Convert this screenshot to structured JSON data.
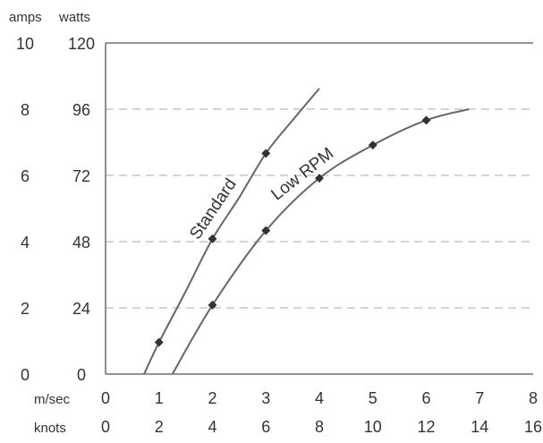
{
  "chart_data": {
    "type": "line",
    "left_axis_units": [
      "amps",
      "watts"
    ],
    "y_ticks_amps": [
      "0",
      "2",
      "4",
      "6",
      "8",
      "10"
    ],
    "y_ticks_watts": [
      "0",
      "24",
      "48",
      "72",
      "96",
      "120"
    ],
    "x_rows": [
      {
        "unit": "m/sec",
        "ticks": [
          "0",
          "1",
          "2",
          "3",
          "4",
          "5",
          "6",
          "7",
          "8"
        ]
      },
      {
        "unit": "knots",
        "ticks": [
          "0",
          "2",
          "4",
          "6",
          "8",
          "10",
          "12",
          "14",
          "16"
        ]
      }
    ],
    "xlim": [
      0,
      8
    ],
    "ylim": [
      0,
      120
    ],
    "grid": {
      "horizontal": "dashed"
    },
    "series": [
      {
        "name": "Standard",
        "curve": [
          [
            0.72,
            0
          ],
          [
            1,
            11.5
          ],
          [
            1.5,
            30
          ],
          [
            2,
            49
          ],
          [
            2.5,
            64
          ],
          [
            3,
            80
          ],
          [
            3.5,
            92
          ],
          [
            4,
            103.5
          ]
        ],
        "markers": [
          [
            1,
            11.5
          ],
          [
            2,
            49
          ],
          [
            3,
            80
          ]
        ]
      },
      {
        "name": "Low RPM",
        "curve": [
          [
            1.25,
            0
          ],
          [
            2,
            25
          ],
          [
            3,
            52
          ],
          [
            4,
            71
          ],
          [
            5,
            83
          ],
          [
            6,
            92
          ],
          [
            6.8,
            96
          ]
        ],
        "markers": [
          [
            2,
            25
          ],
          [
            3,
            52
          ],
          [
            4,
            71
          ],
          [
            5,
            83
          ],
          [
            6,
            92
          ]
        ]
      }
    ]
  },
  "colors": {
    "curve": "#666666",
    "marker": "#333333",
    "axis": "#555555",
    "grid": "#bbbbbb"
  }
}
